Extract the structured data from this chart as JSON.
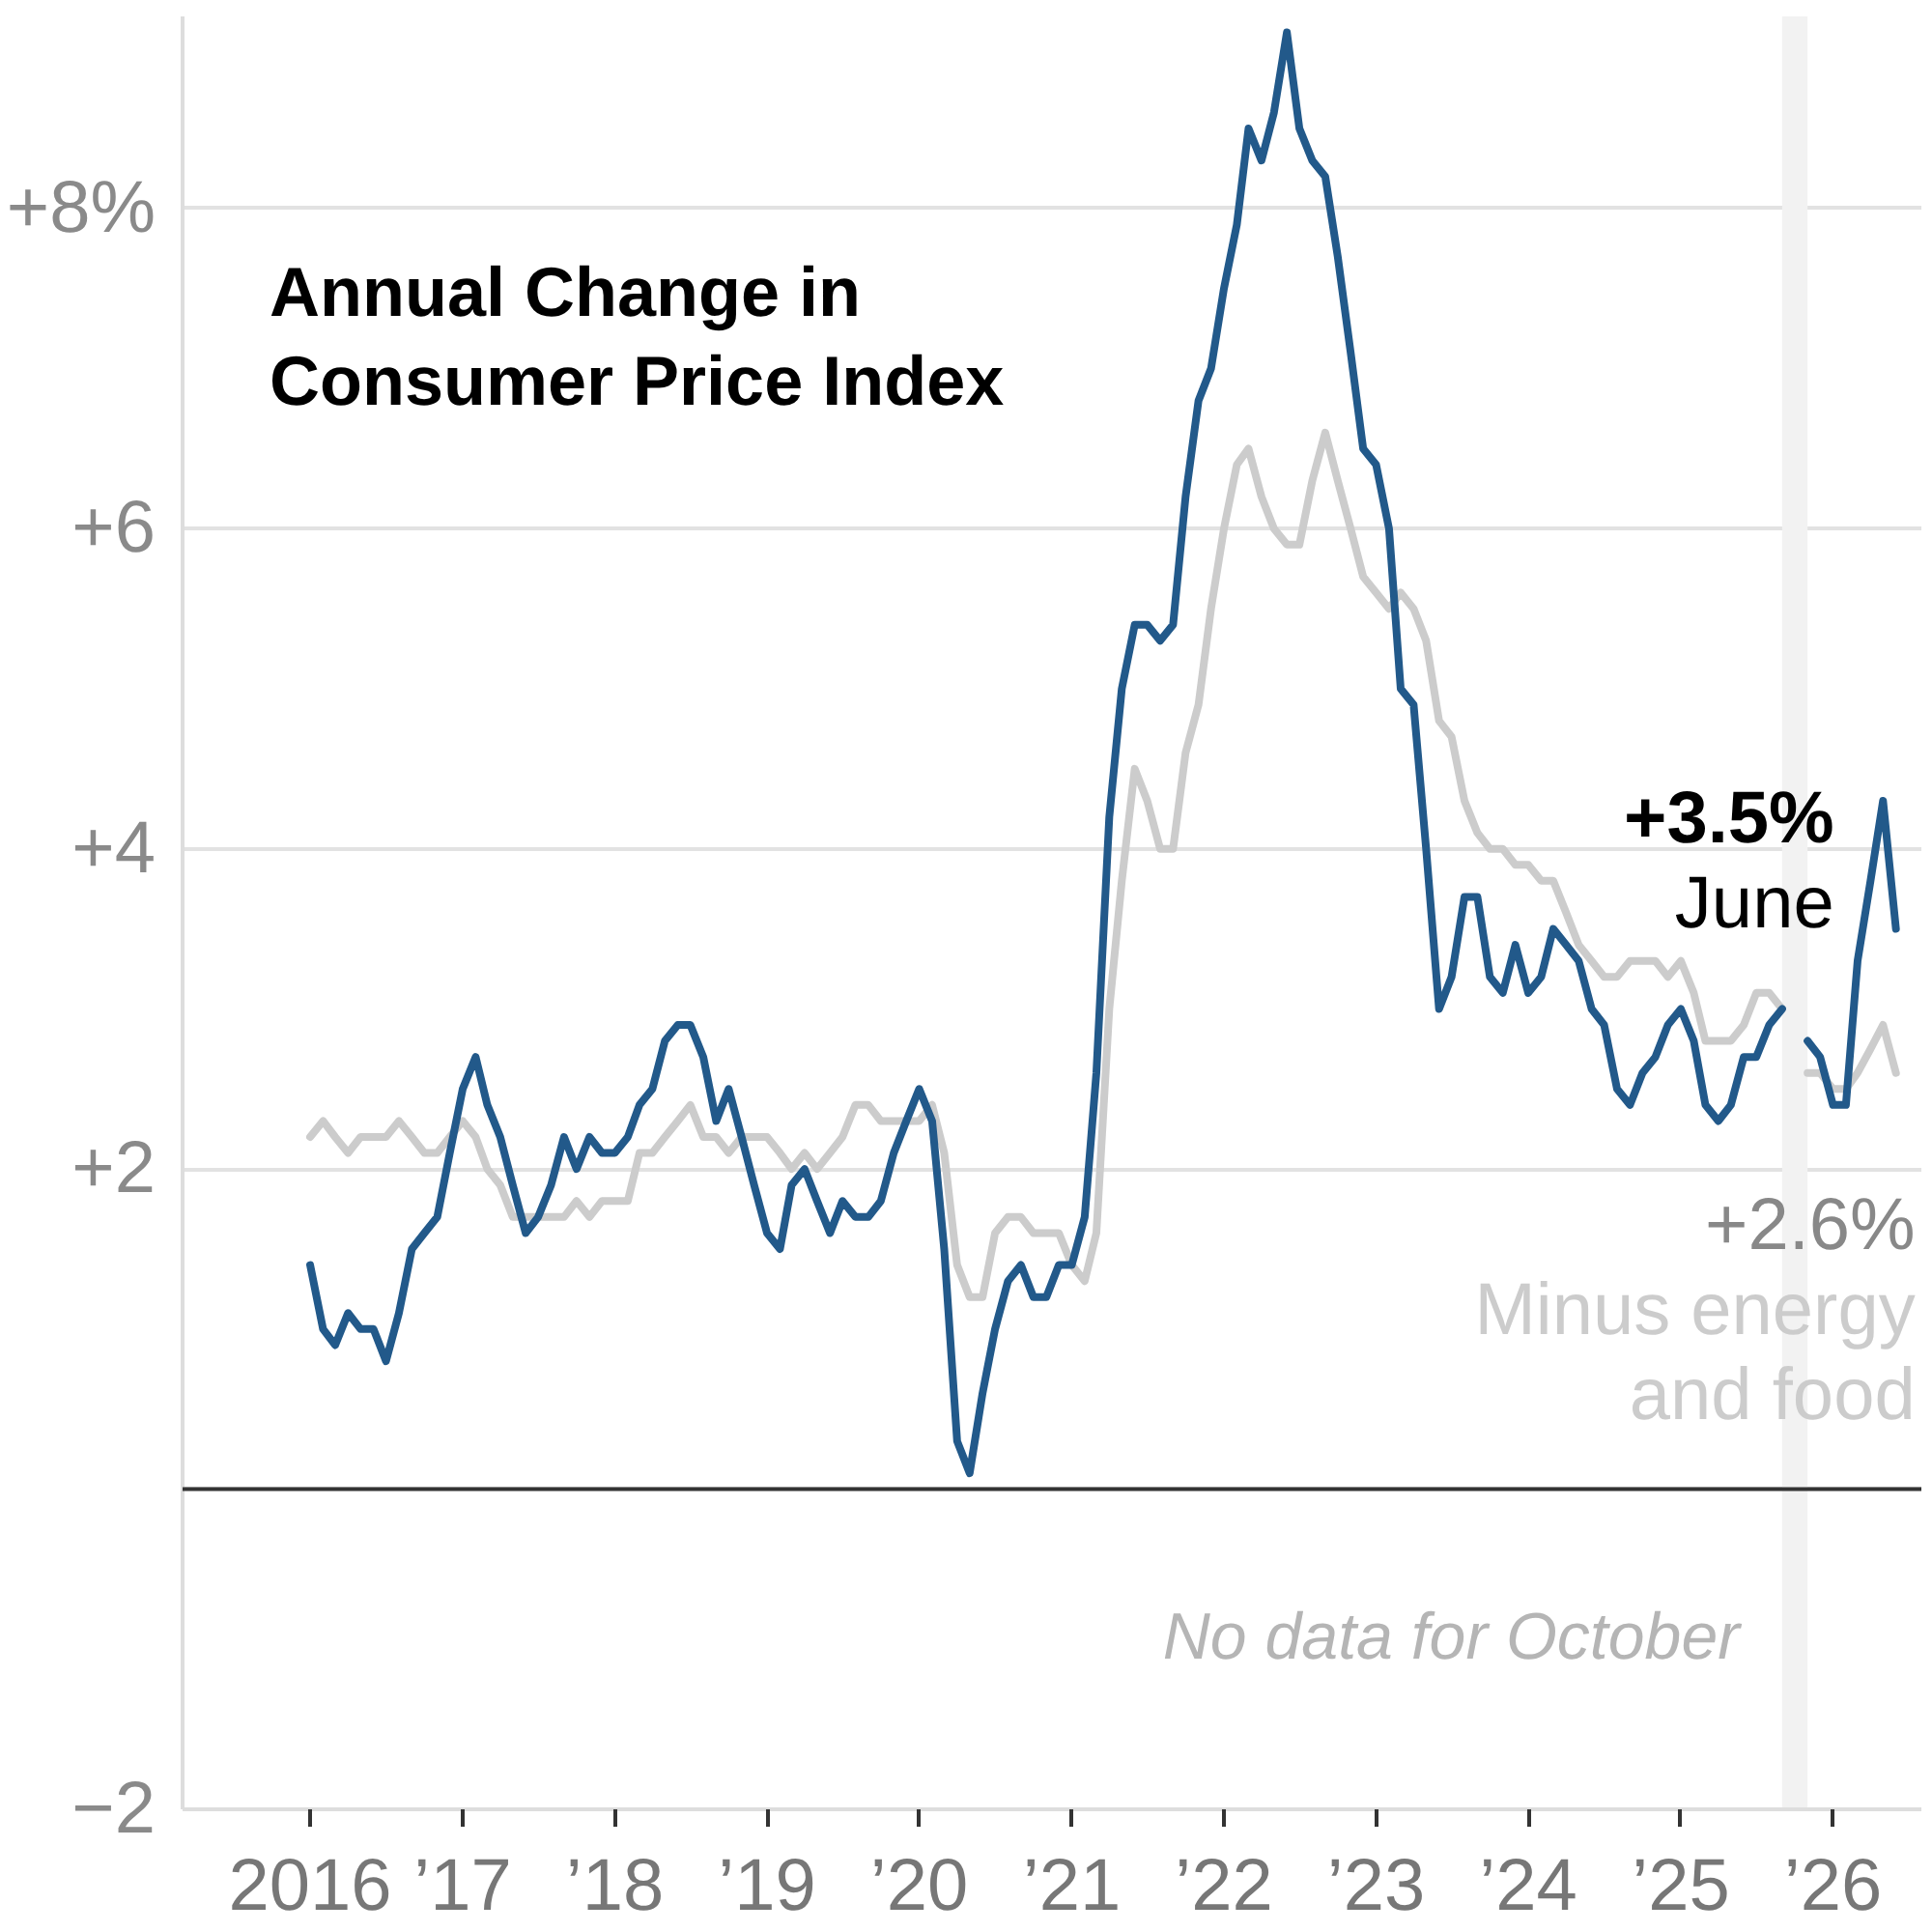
{
  "chart_data": {
    "type": "line",
    "title": "Annual Change in Consumer Price Index",
    "x": [
      "2016-01",
      "2016-02",
      "2016-03",
      "2016-04",
      "2016-05",
      "2016-06",
      "2016-07",
      "2016-08",
      "2016-09",
      "2016-10",
      "2016-11",
      "2016-12",
      "2017-01",
      "2017-02",
      "2017-03",
      "2017-04",
      "2017-05",
      "2017-06",
      "2017-07",
      "2017-08",
      "2017-09",
      "2017-10",
      "2017-11",
      "2017-12",
      "2018-01",
      "2018-02",
      "2018-03",
      "2018-04",
      "2018-05",
      "2018-06",
      "2018-07",
      "2018-08",
      "2018-09",
      "2018-10",
      "2018-11",
      "2018-12",
      "2019-01",
      "2019-02",
      "2019-03",
      "2019-04",
      "2019-05",
      "2019-06",
      "2019-07",
      "2019-08",
      "2019-09",
      "2019-10",
      "2019-11",
      "2019-12",
      "2020-01",
      "2020-02",
      "2020-03",
      "2020-04",
      "2020-05",
      "2020-06",
      "2020-07",
      "2020-08",
      "2020-09",
      "2020-10",
      "2020-11",
      "2020-12",
      "2021-01",
      "2021-02",
      "2021-03",
      "2021-04",
      "2021-05",
      "2021-06",
      "2021-07",
      "2021-08",
      "2021-09",
      "2021-10",
      "2021-11",
      "2021-12",
      "2022-01",
      "2022-02",
      "2022-03",
      "2022-04",
      "2022-05",
      "2022-06",
      "2022-07",
      "2022-08",
      "2022-09",
      "2022-10",
      "2022-11",
      "2022-12",
      "2023-01",
      "2023-02",
      "2023-03",
      "2023-04",
      "2023-05",
      "2023-06",
      "2023-07",
      "2023-08",
      "2023-09",
      "2023-10",
      "2023-11",
      "2023-12",
      "2024-01",
      "2024-02",
      "2024-03",
      "2024-04",
      "2024-05",
      "2024-06",
      "2024-07",
      "2024-08",
      "2024-09",
      "2024-10",
      "2024-11",
      "2024-12",
      "2025-01",
      "2025-02",
      "2025-03",
      "2025-04",
      "2025-05",
      "2025-06",
      "2025-07",
      "2025-08",
      "2025-09",
      "2025-10",
      "2025-11",
      "2025-12",
      "2026-01",
      "2026-02",
      "2026-03",
      "2026-04",
      "2026-05",
      "2026-06"
    ],
    "series": [
      {
        "name": "Minus energy and food",
        "color": "#cccccc",
        "values": [
          2.2,
          2.3,
          2.2,
          2.1,
          2.2,
          2.2,
          2.2,
          2.3,
          2.2,
          2.1,
          2.1,
          2.2,
          2.3,
          2.2,
          2.0,
          1.9,
          1.7,
          1.7,
          1.7,
          1.7,
          1.7,
          1.8,
          1.7,
          1.8,
          1.8,
          1.8,
          2.1,
          2.1,
          2.2,
          2.3,
          2.4,
          2.2,
          2.2,
          2.1,
          2.2,
          2.2,
          2.2,
          2.1,
          2.0,
          2.1,
          2.0,
          2.1,
          2.2,
          2.4,
          2.4,
          2.3,
          2.3,
          2.3,
          2.3,
          2.4,
          2.1,
          1.4,
          1.2,
          1.2,
          1.6,
          1.7,
          1.7,
          1.6,
          1.6,
          1.6,
          1.4,
          1.3,
          1.6,
          3.0,
          3.8,
          4.5,
          4.3,
          4.0,
          4.0,
          4.6,
          4.9,
          5.5,
          6.0,
          6.4,
          6.5,
          6.2,
          6.0,
          5.9,
          5.9,
          6.3,
          6.6,
          6.3,
          6.0,
          5.7,
          5.6,
          5.5,
          5.6,
          5.5,
          5.3,
          4.8,
          4.7,
          4.3,
          4.1,
          4.0,
          4.0,
          3.9,
          3.9,
          3.8,
          3.8,
          3.6,
          3.4,
          3.3,
          3.2,
          3.2,
          3.3,
          3.3,
          3.3,
          3.2,
          3.3,
          3.1,
          2.8,
          2.8,
          2.8,
          2.9,
          3.1,
          3.1,
          3.0,
          null,
          2.6,
          2.6,
          2.5,
          2.5,
          2.6,
          2.75,
          2.9,
          2.6
        ],
        "value_labels": [
          null,
          null,
          null,
          null,
          null,
          null,
          null,
          null,
          null,
          null,
          null,
          null,
          null,
          null,
          null,
          null,
          null,
          null,
          null,
          null,
          null,
          null,
          null,
          null,
          null,
          null,
          null,
          null,
          null,
          null,
          null,
          null,
          null,
          null,
          null,
          null,
          null,
          null,
          null,
          null,
          null,
          null,
          null,
          null,
          null,
          null,
          null,
          null,
          null,
          null,
          null,
          null,
          null,
          null,
          null,
          null,
          null,
          null,
          null,
          null,
          null,
          null,
          null,
          null,
          null,
          null,
          null,
          null,
          null,
          null,
          null,
          null,
          null,
          null,
          null,
          null,
          null,
          null,
          null,
          null,
          null,
          null,
          null,
          null,
          null,
          null,
          null,
          null,
          null,
          null,
          null,
          null,
          null,
          null,
          null,
          null,
          null,
          null,
          null,
          null,
          null,
          null,
          null,
          null,
          null,
          null,
          null,
          null,
          null,
          null,
          null,
          null,
          null,
          null,
          null,
          null,
          null,
          null,
          null,
          null,
          null,
          null,
          null,
          null,
          null,
          "+2.6%"
        ]
      },
      {
        "color": "#22598a",
        "values": [
          1.4,
          1.0,
          0.9,
          1.1,
          1.0,
          1.0,
          0.8,
          1.1,
          1.5,
          1.6,
          1.7,
          2.1,
          2.5,
          2.7,
          2.4,
          2.2,
          1.9,
          1.6,
          1.7,
          1.9,
          2.2,
          2.0,
          2.2,
          2.1,
          2.1,
          2.2,
          2.4,
          2.5,
          2.8,
          2.9,
          2.9,
          2.7,
          2.3,
          2.5,
          2.2,
          1.9,
          1.6,
          1.5,
          1.9,
          2.0,
          1.8,
          1.6,
          1.8,
          1.7,
          1.7,
          1.8,
          2.1,
          2.3,
          2.5,
          2.3,
          1.5,
          0.3,
          0.1,
          0.6,
          1.0,
          1.3,
          1.4,
          1.2,
          1.2,
          1.4,
          1.4,
          1.7,
          2.6,
          4.2,
          5.0,
          5.4,
          5.4,
          5.3,
          5.4,
          6.2,
          6.8,
          7.0,
          7.5,
          7.9,
          8.5,
          8.3,
          8.6,
          9.1,
          8.5,
          8.3,
          8.2,
          7.7,
          7.1,
          6.5,
          6.4,
          6.0,
          5.0,
          4.9,
          4.0,
          3.0,
          3.2,
          3.7,
          3.7,
          3.2,
          3.1,
          3.4,
          3.1,
          3.2,
          3.5,
          3.4,
          3.3,
          3.0,
          2.9,
          2.5,
          2.4,
          2.6,
          2.7,
          2.9,
          3.0,
          2.8,
          2.4,
          2.3,
          2.4,
          2.7,
          2.7,
          2.9,
          3.0,
          null,
          2.8,
          2.7,
          2.4,
          2.4,
          3.3,
          3.8,
          4.3,
          3.5
        ]
      }
    ],
    "xlim": [
      "2015-03",
      "2026-08"
    ],
    "xticks": [
      {
        "value": "2016",
        "label": "2016"
      },
      {
        "value": "2017",
        "label": "’17"
      },
      {
        "value": "2018",
        "label": "’18"
      },
      {
        "value": "2019",
        "label": "’19"
      },
      {
        "value": "2020",
        "label": "’20"
      },
      {
        "value": "2021",
        "label": "’21"
      },
      {
        "value": "2022",
        "label": "’22"
      },
      {
        "value": "2023",
        "label": "’23"
      },
      {
        "value": "2024",
        "label": "’24"
      },
      {
        "value": "2025",
        "label": "’25"
      },
      {
        "value": "2026",
        "label": "’26"
      }
    ],
    "ylim": [
      -2,
      9.2
    ],
    "yticks": [
      {
        "value": -2,
        "label": "−2"
      },
      {
        "value": 0,
        "label": null
      },
      {
        "value": 2,
        "label": "+2"
      },
      {
        "value": 4,
        "label": "+4"
      },
      {
        "value": 6,
        "label": "+6"
      },
      {
        "value": 8,
        "label": "+8%"
      }
    ],
    "grid": "y",
    "ref_lines": [
      {
        "axis": "y",
        "value": 0,
        "color": "#333333"
      }
    ],
    "bands": [
      {
        "axis": "x",
        "from": "2025-09",
        "to": "2025-11",
        "label": "No data for October",
        "color": "#f2f2f2"
      }
    ],
    "annotations": [
      {
        "text": "+3.5%",
        "x": "2026-06",
        "y": 3.5
      },
      {
        "text": "June",
        "x": "2026-06",
        "y": 3.5
      }
    ]
  }
}
